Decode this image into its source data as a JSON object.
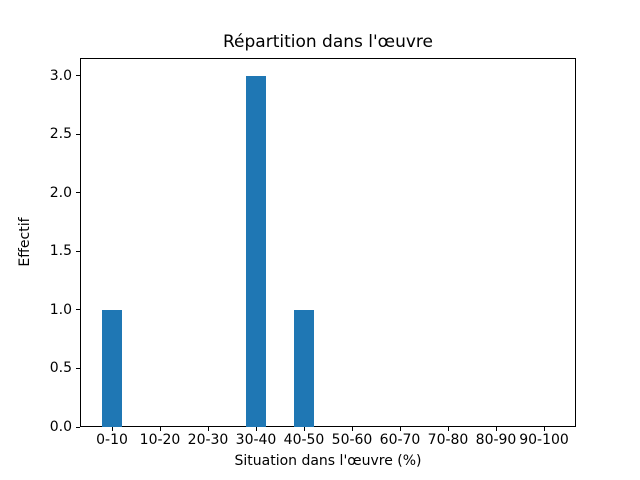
{
  "chart_data": {
    "type": "bar",
    "title": "Répartition dans l'œuvre",
    "xlabel": "Situation dans l'œuvre (%)",
    "ylabel": "Effectif",
    "categories": [
      "0-10",
      "10-20",
      "20-30",
      "30-40",
      "40-50",
      "50-60",
      "60-70",
      "70-80",
      "80-90",
      "90-100"
    ],
    "values": [
      1,
      0,
      0,
      3,
      1,
      0,
      0,
      0,
      0,
      0
    ],
    "yticks": [
      0.0,
      0.5,
      1.0,
      1.5,
      2.0,
      2.5,
      3.0
    ],
    "ylim": [
      0,
      3.15
    ],
    "grid": false,
    "legend": "none",
    "bar_color": "#1f77b4",
    "axis_color": "#000000",
    "background_color": "#ffffff"
  }
}
